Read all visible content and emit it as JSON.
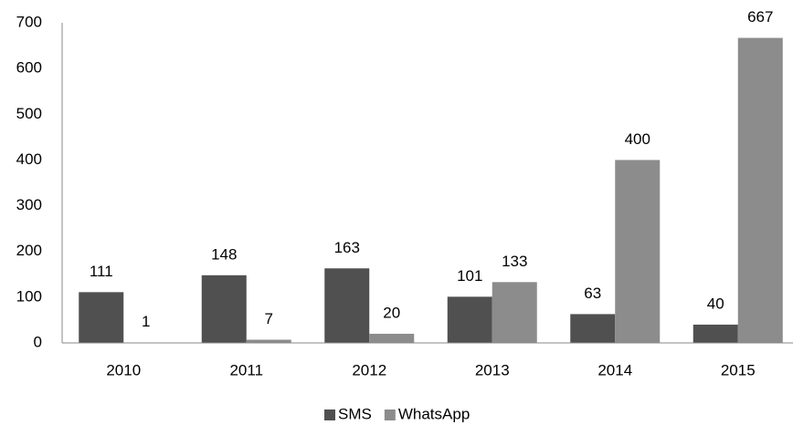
{
  "chart_data": {
    "type": "bar",
    "categories": [
      "2010",
      "2011",
      "2012",
      "2013",
      "2014",
      "2015"
    ],
    "series": [
      {
        "name": "SMS",
        "color": "#505050",
        "values": [
          111,
          148,
          163,
          101,
          63,
          40
        ]
      },
      {
        "name": "WhatsApp",
        "color": "#8c8c8c",
        "values": [
          1,
          7,
          20,
          133,
          400,
          667
        ]
      }
    ],
    "ylim": [
      0,
      700
    ],
    "yticks": [
      0,
      100,
      200,
      300,
      400,
      500,
      600,
      700
    ],
    "grid": false,
    "legend": "bottom"
  }
}
